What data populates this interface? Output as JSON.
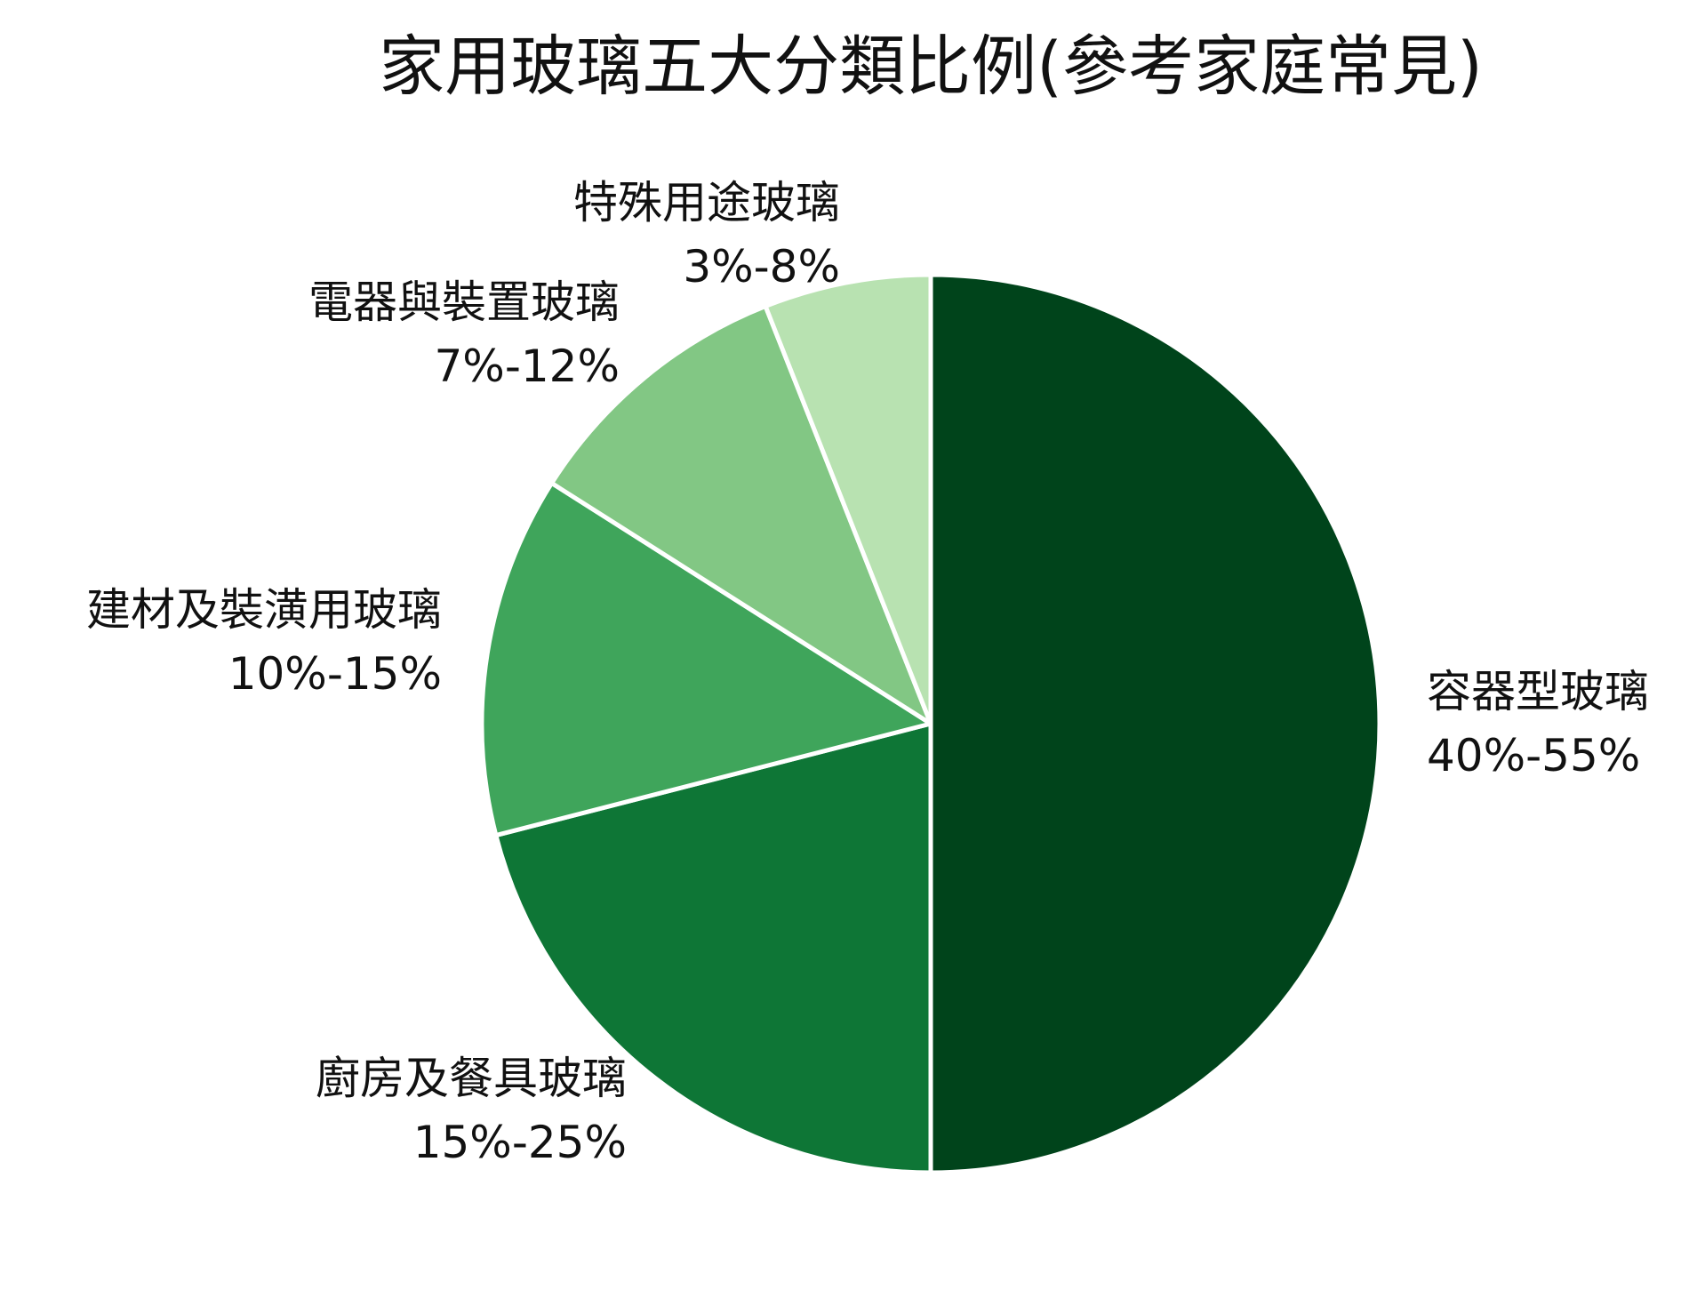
{
  "chart_data": {
    "type": "pie",
    "title": "家用玻璃五大分類比例(參考家庭常見)",
    "start": "top",
    "direction": "clockwise",
    "slices": [
      {
        "name": "容器型玻璃",
        "range_label": "40%-55%",
        "value": 50.0,
        "color": "#00441b"
      },
      {
        "name": "廚房及餐具玻璃",
        "range_label": "15%-25%",
        "value": 21.0,
        "color": "#0e7636"
      },
      {
        "name": "建材及裝潢用玻璃",
        "range_label": "10%-15%",
        "value": 13.0,
        "color": "#3fa55b"
      },
      {
        "name": "電器與裝置玻璃",
        "range_label": "7%-12%",
        "value": 10.0,
        "color": "#82c784"
      },
      {
        "name": "特殊用途玻璃",
        "range_label": "3%-8%",
        "value": 6.0,
        "color": "#b8e2b1"
      }
    ],
    "legend": "none"
  }
}
